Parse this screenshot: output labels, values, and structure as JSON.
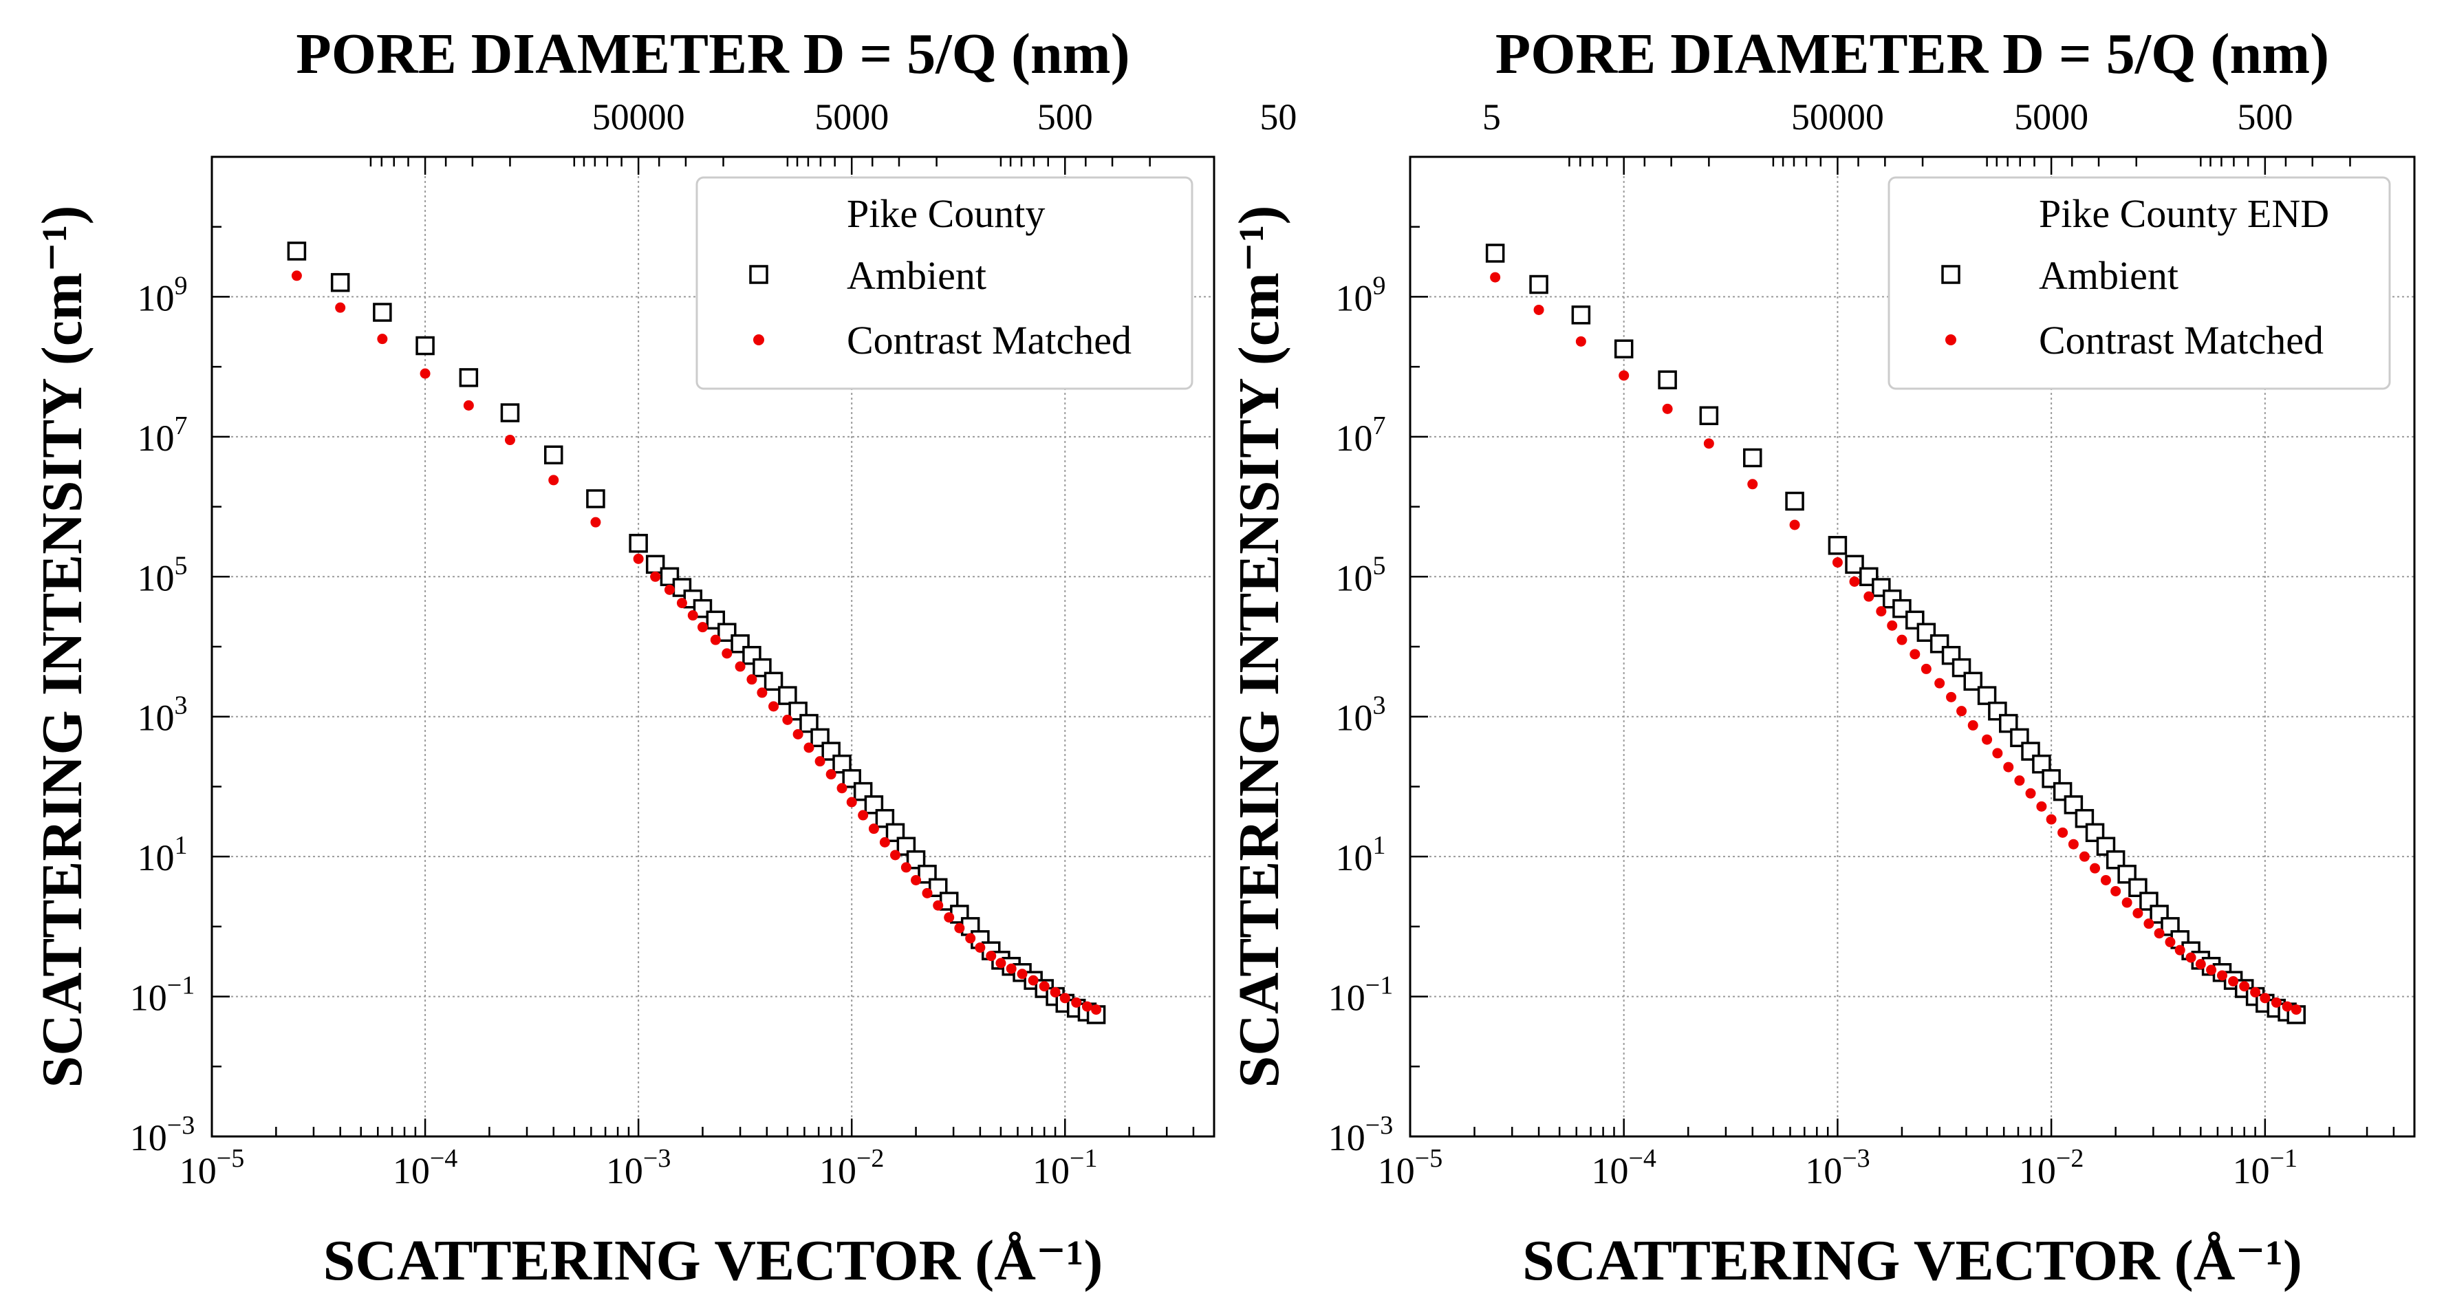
{
  "colors": {
    "ambient": "#000000",
    "contrast_matched": "#ee0000",
    "grid": "#9a9a9a",
    "legend_border": "#cccccc"
  },
  "chart_data": [
    {
      "type": "scatter",
      "top_axis_title": "PORE DIAMETER D = 5/Q (nm)",
      "xlabel": "SCATTERING VECTOR (Å⁻¹)",
      "ylabel": "SCATTERING INTENSITY (cm⁻¹)",
      "x_scale": "log",
      "y_scale": "log",
      "xlim": [
        1e-05,
        0.5
      ],
      "ylim": [
        0.001,
        100000000000
      ],
      "grid": true,
      "legend_title": "Pike County",
      "legend_position": "top-right",
      "x_ticks": [
        "10⁻⁵",
        "10⁻⁴",
        "10⁻³",
        "10⁻²",
        "10⁻¹"
      ],
      "y_ticks": [
        "10⁻³",
        "10⁻¹",
        "10¹",
        "10³",
        "10⁵",
        "10⁷",
        "10⁹"
      ],
      "top_ticks": [
        "50000",
        "5000",
        "500",
        "50",
        "5"
      ],
      "series": [
        {
          "name": "Ambient",
          "marker": "open-square",
          "points": [
            [
              2.5e-05,
              4500000000
            ],
            [
              4e-05,
              1600000000
            ],
            [
              6.3e-05,
              600000000
            ],
            [
              0.0001,
              200000000
            ],
            [
              0.00016,
              70000000
            ],
            [
              0.00025,
              22000000
            ],
            [
              0.0004,
              5500000
            ],
            [
              0.00063,
              1300000
            ],
            [
              0.001,
              300000
            ],
            [
              0.0012,
              150000
            ],
            [
              0.0014,
              100000
            ],
            [
              0.0016,
              70000
            ],
            [
              0.0018,
              48000
            ],
            [
              0.002,
              35000
            ],
            [
              0.0023,
              24000
            ],
            [
              0.0026,
              16000
            ],
            [
              0.003,
              11000
            ],
            [
              0.0034,
              7500
            ],
            [
              0.0038,
              5000
            ],
            [
              0.0043,
              3200
            ],
            [
              0.005,
              2000
            ],
            [
              0.0056,
              1200
            ],
            [
              0.0063,
              800
            ],
            [
              0.0071,
              500
            ],
            [
              0.008,
              320
            ],
            [
              0.009,
              210
            ],
            [
              0.01,
              130
            ],
            [
              0.0113,
              85
            ],
            [
              0.0127,
              55
            ],
            [
              0.0143,
              35
            ],
            [
              0.016,
              22
            ],
            [
              0.018,
              14
            ],
            [
              0.02,
              9
            ],
            [
              0.0226,
              5.6
            ],
            [
              0.0254,
              3.6
            ],
            [
              0.0286,
              2.3
            ],
            [
              0.032,
              1.5
            ],
            [
              0.036,
              1
            ],
            [
              0.04,
              0.65
            ],
            [
              0.045,
              0.45
            ],
            [
              0.05,
              0.33
            ],
            [
              0.056,
              0.27
            ],
            [
              0.063,
              0.22
            ],
            [
              0.071,
              0.17
            ],
            [
              0.08,
              0.13
            ],
            [
              0.09,
              0.1
            ],
            [
              0.1,
              0.08
            ],
            [
              0.113,
              0.068
            ],
            [
              0.127,
              0.06
            ],
            [
              0.14,
              0.055
            ]
          ]
        },
        {
          "name": "Contrast Matched",
          "marker": "dot",
          "points": [
            [
              2.5e-05,
              2000000000
            ],
            [
              4e-05,
              700000000
            ],
            [
              6.3e-05,
              250000000
            ],
            [
              0.0001,
              80000000
            ],
            [
              0.00016,
              28000000
            ],
            [
              0.00025,
              9000000
            ],
            [
              0.0004,
              2400000
            ],
            [
              0.00063,
              600000
            ],
            [
              0.001,
              180000
            ],
            [
              0.0012,
              100000
            ],
            [
              0.0014,
              65000
            ],
            [
              0.0016,
              42000
            ],
            [
              0.0018,
              28000
            ],
            [
              0.002,
              19000
            ],
            [
              0.0023,
              12500
            ],
            [
              0.0026,
              8000
            ],
            [
              0.003,
              5200
            ],
            [
              0.0034,
              3400
            ],
            [
              0.0038,
              2200
            ],
            [
              0.0043,
              1400
            ],
            [
              0.005,
              900
            ],
            [
              0.0056,
              560
            ],
            [
              0.0063,
              360
            ],
            [
              0.0071,
              230
            ],
            [
              0.008,
              150
            ],
            [
              0.009,
              95
            ],
            [
              0.01,
              60
            ],
            [
              0.0113,
              39
            ],
            [
              0.0127,
              25
            ],
            [
              0.0143,
              16
            ],
            [
              0.016,
              10.5
            ],
            [
              0.018,
              7
            ],
            [
              0.02,
              4.6
            ],
            [
              0.0226,
              3
            ],
            [
              0.0254,
              2
            ],
            [
              0.0286,
              1.35
            ],
            [
              0.032,
              0.95
            ],
            [
              0.036,
              0.68
            ],
            [
              0.04,
              0.5
            ],
            [
              0.045,
              0.38
            ],
            [
              0.05,
              0.3
            ],
            [
              0.056,
              0.25
            ],
            [
              0.063,
              0.21
            ],
            [
              0.071,
              0.17
            ],
            [
              0.08,
              0.14
            ],
            [
              0.09,
              0.115
            ],
            [
              0.1,
              0.095
            ],
            [
              0.113,
              0.082
            ],
            [
              0.127,
              0.072
            ],
            [
              0.14,
              0.065
            ]
          ]
        }
      ]
    },
    {
      "type": "scatter",
      "top_axis_title": "PORE DIAMETER D = 5/Q (nm)",
      "xlabel": "SCATTERING VECTOR (Å⁻¹)",
      "ylabel": "SCATTERING INTENSITY (cm⁻¹)",
      "x_scale": "log",
      "y_scale": "log",
      "xlim": [
        1e-05,
        0.5
      ],
      "ylim": [
        0.001,
        100000000000
      ],
      "grid": true,
      "legend_title": "Pike County END",
      "legend_position": "top-right",
      "x_ticks": [
        "10⁻⁵",
        "10⁻⁴",
        "10⁻³",
        "10⁻²",
        "10⁻¹"
      ],
      "y_ticks": [
        "10⁻³",
        "10⁻¹",
        "10¹",
        "10³",
        "10⁵",
        "10⁷",
        "10⁹"
      ],
      "top_ticks": [
        "50000",
        "5000",
        "500",
        "50",
        "5"
      ],
      "series": [
        {
          "name": "Ambient",
          "marker": "open-square",
          "points": [
            [
              2.5e-05,
              4200000000
            ],
            [
              4e-05,
              1500000000
            ],
            [
              6.3e-05,
              550000000
            ],
            [
              0.0001,
              180000000
            ],
            [
              0.00016,
              65000000
            ],
            [
              0.00025,
              20000000
            ],
            [
              0.0004,
              5000000
            ],
            [
              0.00063,
              1200000
            ],
            [
              0.001,
              280000
            ],
            [
              0.0012,
              150000
            ],
            [
              0.0014,
              100000
            ],
            [
              0.0016,
              70000
            ],
            [
              0.0018,
              48000
            ],
            [
              0.002,
              35000
            ],
            [
              0.0023,
              24000
            ],
            [
              0.0026,
              16000
            ],
            [
              0.003,
              11000
            ],
            [
              0.0034,
              7500
            ],
            [
              0.0038,
              5000
            ],
            [
              0.0043,
              3200
            ],
            [
              0.005,
              2000
            ],
            [
              0.0056,
              1200
            ],
            [
              0.0063,
              800
            ],
            [
              0.0071,
              500
            ],
            [
              0.008,
              320
            ],
            [
              0.009,
              210
            ],
            [
              0.01,
              130
            ],
            [
              0.0113,
              85
            ],
            [
              0.0127,
              55
            ],
            [
              0.0143,
              35
            ],
            [
              0.016,
              22
            ],
            [
              0.018,
              14
            ],
            [
              0.02,
              9
            ],
            [
              0.0226,
              5.6
            ],
            [
              0.0254,
              3.6
            ],
            [
              0.0286,
              2.3
            ],
            [
              0.032,
              1.5
            ],
            [
              0.036,
              1
            ],
            [
              0.04,
              0.65
            ],
            [
              0.045,
              0.45
            ],
            [
              0.05,
              0.33
            ],
            [
              0.056,
              0.27
            ],
            [
              0.063,
              0.22
            ],
            [
              0.071,
              0.17
            ],
            [
              0.08,
              0.13
            ],
            [
              0.09,
              0.1
            ],
            [
              0.1,
              0.08
            ],
            [
              0.113,
              0.068
            ],
            [
              0.127,
              0.06
            ],
            [
              0.14,
              0.055
            ]
          ]
        },
        {
          "name": "Contrast Matched",
          "marker": "dot",
          "points": [
            [
              2.5e-05,
              1900000000
            ],
            [
              4e-05,
              650000000
            ],
            [
              6.3e-05,
              230000000
            ],
            [
              0.0001,
              75000000
            ],
            [
              0.00016,
              25000000
            ],
            [
              0.00025,
              8000000
            ],
            [
              0.0004,
              2100000
            ],
            [
              0.00063,
              550000
            ],
            [
              0.001,
              160000
            ],
            [
              0.0012,
              85000
            ],
            [
              0.0014,
              52000
            ],
            [
              0.0016,
              32000
            ],
            [
              0.0018,
              20000
            ],
            [
              0.002,
              12500
            ],
            [
              0.0023,
              7800
            ],
            [
              0.0026,
              4800
            ],
            [
              0.003,
              3000
            ],
            [
              0.0034,
              1900
            ],
            [
              0.0038,
              1200
            ],
            [
              0.0043,
              750
            ],
            [
              0.005,
              470
            ],
            [
              0.0056,
              300
            ],
            [
              0.0063,
              190
            ],
            [
              0.0071,
              122
            ],
            [
              0.008,
              80
            ],
            [
              0.009,
              52
            ],
            [
              0.01,
              34
            ],
            [
              0.0113,
              22
            ],
            [
              0.0127,
              15
            ],
            [
              0.0143,
              10
            ],
            [
              0.016,
              6.8
            ],
            [
              0.018,
              4.6
            ],
            [
              0.02,
              3.2
            ],
            [
              0.0226,
              2.2
            ],
            [
              0.0254,
              1.55
            ],
            [
              0.0286,
              1.1
            ],
            [
              0.032,
              0.8
            ],
            [
              0.036,
              0.6
            ],
            [
              0.04,
              0.46
            ],
            [
              0.045,
              0.36
            ],
            [
              0.05,
              0.29
            ],
            [
              0.056,
              0.24
            ],
            [
              0.063,
              0.2
            ],
            [
              0.071,
              0.165
            ],
            [
              0.08,
              0.14
            ],
            [
              0.09,
              0.115
            ],
            [
              0.1,
              0.095
            ],
            [
              0.113,
              0.082
            ],
            [
              0.127,
              0.072
            ],
            [
              0.14,
              0.065
            ]
          ]
        }
      ]
    }
  ]
}
